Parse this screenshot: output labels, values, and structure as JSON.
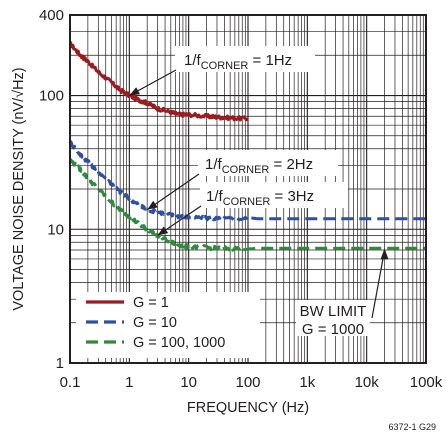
{
  "chart_data": {
    "type": "line",
    "title": "",
    "xlabel": "FREQUENCY (Hz)",
    "ylabel": "VOLTAGE NOISE DENSITY (nV/√Hz)",
    "x_scale": "log",
    "y_scale": "log",
    "xlim": [
      0.1,
      100000
    ],
    "ylim": [
      1,
      400
    ],
    "grid": true,
    "x_ticks": [
      "0.1",
      "1",
      "10",
      "100",
      "1k",
      "10k",
      "100k"
    ],
    "y_ticks": [
      "1",
      "10",
      "100",
      "400"
    ],
    "legend_position": "bottom-left",
    "series": [
      {
        "name": "G = 1",
        "color": "#9b1b1f",
        "line_style": "solid",
        "x": [
          0.1,
          0.15,
          0.2,
          0.3,
          0.5,
          0.7,
          1,
          1.5,
          2,
          3,
          5,
          7,
          10,
          20,
          30,
          50,
          100
        ],
        "y": [
          245,
          200,
          180,
          150,
          125,
          110,
          100,
          92,
          88,
          80,
          75,
          72,
          72,
          70,
          69,
          68,
          67
        ]
      },
      {
        "name": "G = 10",
        "color": "#2e4fa2",
        "line_style": "dashed",
        "x": [
          0.1,
          0.15,
          0.2,
          0.3,
          0.5,
          0.7,
          1,
          1.5,
          2,
          3,
          5,
          7,
          10,
          20,
          30,
          50,
          100,
          200,
          1000,
          10000,
          100000
        ],
        "y": [
          45,
          36,
          32,
          27,
          22,
          19,
          17,
          15,
          14,
          13.5,
          12.8,
          12.5,
          12.3,
          12.1,
          12,
          12,
          12,
          12,
          12,
          12,
          12
        ]
      },
      {
        "name": "G = 100, 1000",
        "color": "#2f8a3b",
        "line_style": "dashed",
        "x": [
          0.1,
          0.15,
          0.2,
          0.3,
          0.5,
          0.7,
          1,
          1.5,
          2,
          3,
          5,
          7,
          10,
          20,
          30,
          50,
          100,
          200,
          1000,
          10000,
          100000
        ],
        "y": [
          33,
          28,
          24,
          20,
          16,
          14,
          12.5,
          10.8,
          10,
          9,
          8,
          7.6,
          7.4,
          7.3,
          7.2,
          7.2,
          7.2,
          7.2,
          7.2,
          7.2,
          7.2
        ]
      }
    ],
    "annotations": [
      {
        "text": "1/fCORNER = 1Hz",
        "main": "1/f",
        "sub": "CORNER",
        "rest": " = 1Hz",
        "target": [
          1,
          100
        ]
      },
      {
        "text": "1/fCORNER = 2Hz",
        "main": "1/f",
        "sub": "CORNER",
        "rest": " = 2Hz",
        "target": [
          2,
          14
        ]
      },
      {
        "text": "1/fCORNER = 3Hz",
        "main": "1/f",
        "sub": "CORNER",
        "rest": " = 3Hz",
        "target": [
          3,
          9
        ]
      },
      {
        "text": "BW LIMIT G = 1000",
        "line1": "BW LIMIT",
        "line2": "G = 1000",
        "target": [
          20000,
          7.2
        ]
      }
    ],
    "figure_id": "6372-1 G29"
  }
}
